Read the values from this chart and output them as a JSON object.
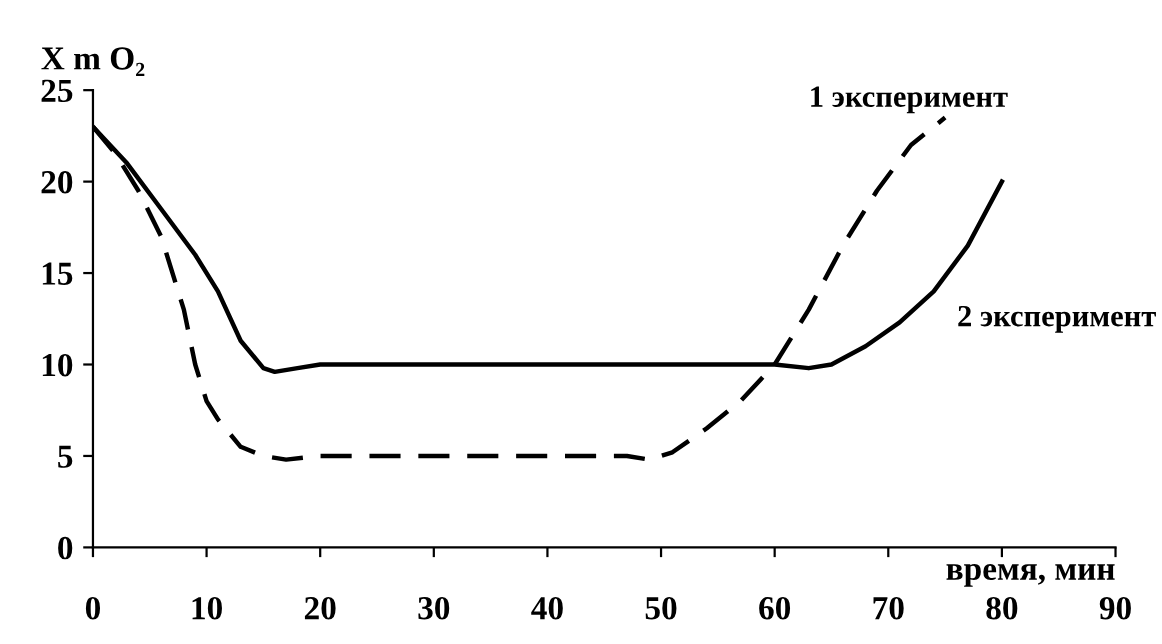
{
  "chart_data": {
    "type": "line",
    "ylabel": "X m O₂",
    "xlabel": "время, мин",
    "xlim": [
      0,
      90
    ],
    "ylim": [
      0,
      25
    ],
    "xticks": [
      0,
      10,
      20,
      30,
      40,
      50,
      60,
      70,
      80,
      90
    ],
    "yticks": [
      0,
      5,
      10,
      15,
      20,
      25
    ],
    "grid": false,
    "legend": false,
    "series": [
      {
        "name": "1 эксперимент",
        "color": "#000000",
        "line_style": "dashed",
        "x": [
          0,
          2,
          4,
          6,
          8,
          9,
          10,
          11,
          13,
          15,
          17,
          20,
          30,
          40,
          47,
          49,
          51,
          54,
          57,
          60,
          63,
          66,
          69,
          72,
          75
        ],
        "values": [
          23,
          21.5,
          19.5,
          17,
          13,
          10,
          8,
          7,
          5.5,
          5,
          4.8,
          5,
          5,
          5,
          5,
          4.8,
          5.2,
          6.5,
          8,
          10,
          13,
          16.5,
          19.5,
          22,
          23.5
        ]
      },
      {
        "name": "2 эксперимент",
        "color": "#000000",
        "line_style": "solid",
        "x": [
          0,
          3,
          6,
          9,
          11,
          13,
          15,
          16,
          18,
          20,
          30,
          40,
          50,
          60,
          63,
          65,
          68,
          71,
          74,
          77,
          80
        ],
        "values": [
          23,
          21,
          18.5,
          16,
          14,
          11.3,
          9.8,
          9.6,
          9.8,
          10,
          10,
          10,
          10,
          10,
          9.8,
          10,
          11,
          12.3,
          14,
          16.5,
          20
        ]
      }
    ]
  }
}
